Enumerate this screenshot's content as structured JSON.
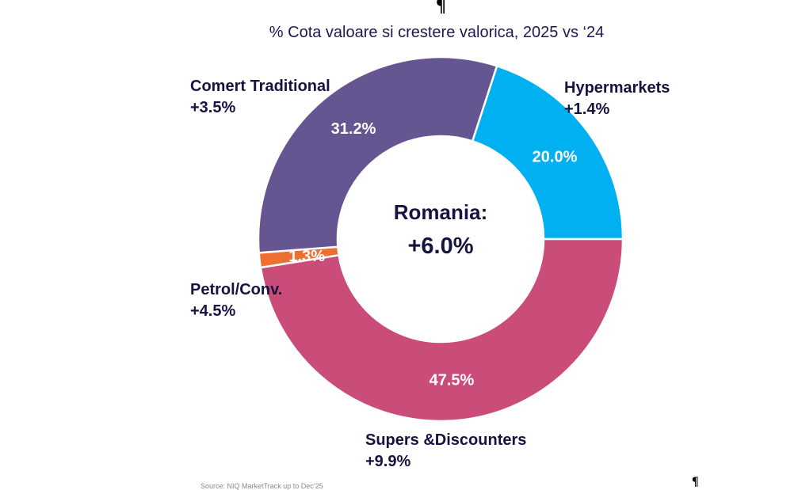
{
  "marks": {
    "pilcrow": "¶"
  },
  "chart_data": {
    "type": "pie",
    "variant": "donut",
    "title": "% Cota valoare si crestere valorica, 2025 vs ‘24",
    "center_title": "Romania:",
    "center_value": "+6.0%",
    "start_angle_deg": 18,
    "direction": "clockwise",
    "slices": [
      {
        "name": "Hypermarkets",
        "share": 20.0,
        "share_label": "20.0%",
        "growth": "+1.4%",
        "color": "#00b0f0"
      },
      {
        "name": "Supers &Discounters",
        "share": 47.5,
        "share_label": "47.5%",
        "growth": "+9.9%",
        "color": "#c94c79"
      },
      {
        "name": "Petrol/Conv.",
        "share": 1.3,
        "share_label": "1.3%",
        "growth": "+4.5%",
        "color": "#ed7030"
      },
      {
        "name": "Comert Traditional",
        "share": 31.2,
        "share_label": "31.2%",
        "growth": "+3.5%",
        "color": "#655590"
      }
    ],
    "source": "Source: NIQ MarketTrack up to Dec’25"
  }
}
